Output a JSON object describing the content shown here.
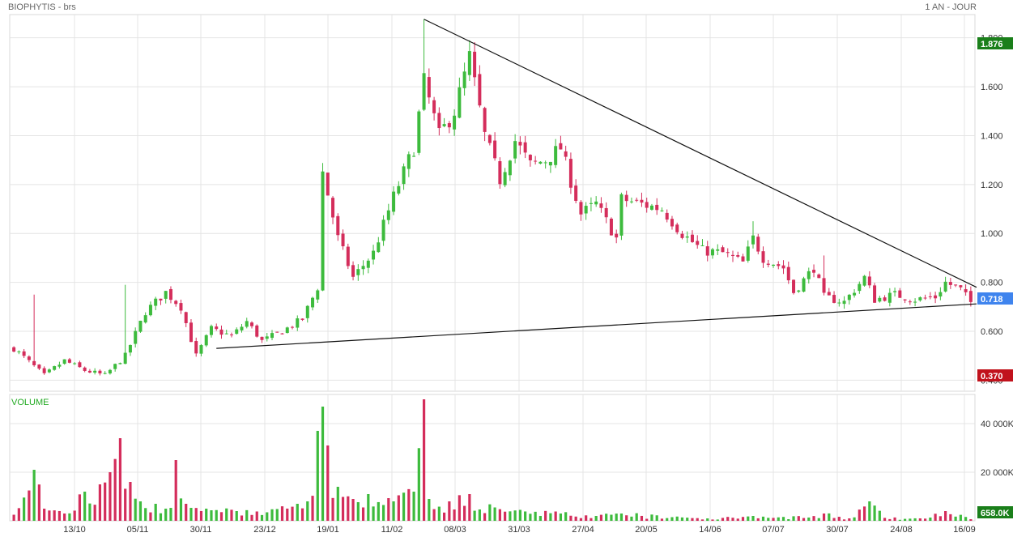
{
  "header": {
    "title": "BIOPHYTIS - brs",
    "period": "1 AN - JOUR"
  },
  "colors": {
    "up": "#3dbb3d",
    "down": "#d42d5b",
    "grid": "#e4e4e4",
    "high_badge": "#1a7f1a",
    "last_badge": "#3f84ee",
    "low_badge": "#c1121c",
    "volume_badge": "#1a7f1a"
  },
  "chart_data": [
    {
      "type": "candlestick",
      "title": "BIOPHYTIS - brs",
      "subtitle": "1 AN - JOUR",
      "x_ticks": [
        "13/10",
        "05/11",
        "30/11",
        "23/12",
        "19/01",
        "11/02",
        "08/03",
        "31/03",
        "27/04",
        "20/05",
        "14/06",
        "07/07",
        "30/07",
        "24/08",
        "16/09"
      ],
      "y_ticks": [
        "0.400",
        "0.600",
        "0.800",
        "1.000",
        "1.200",
        "1.400",
        "1.600",
        "1.800"
      ],
      "ylim": [
        0.355,
        1.895
      ],
      "grid": true,
      "badges": {
        "high": "1.876",
        "last": "0.718",
        "low": "0.370"
      },
      "trendlines": [
        {
          "name": "upper",
          "from": [
            "19/01",
            1.876
          ],
          "to": [
            "16/09",
            0.78
          ]
        },
        {
          "name": "lower",
          "from": [
            "30/11",
            0.53
          ],
          "to": [
            "16/09",
            0.712
          ]
        }
      ],
      "anchors": [
        {
          "i": 0,
          "v": 0.53
        },
        {
          "i": 6,
          "v": 0.42
        },
        {
          "i": 10,
          "v": 0.48
        },
        {
          "i": 14,
          "v": 0.44
        },
        {
          "i": 18,
          "v": 0.42
        },
        {
          "i": 22,
          "v": 0.5
        },
        {
          "i": 26,
          "v": 0.68
        },
        {
          "i": 30,
          "v": 0.76
        },
        {
          "i": 33,
          "v": 0.7
        },
        {
          "i": 36,
          "v": 0.5
        },
        {
          "i": 39,
          "v": 0.61
        },
        {
          "i": 43,
          "v": 0.58
        },
        {
          "i": 46,
          "v": 0.64
        },
        {
          "i": 49,
          "v": 0.56
        },
        {
          "i": 53,
          "v": 0.6
        },
        {
          "i": 57,
          "v": 0.65
        },
        {
          "i": 60,
          "v": 0.78
        },
        {
          "i": 61,
          "v": 1.25
        },
        {
          "i": 64,
          "v": 0.98
        },
        {
          "i": 67,
          "v": 0.82
        },
        {
          "i": 71,
          "v": 0.92
        },
        {
          "i": 75,
          "v": 1.15
        },
        {
          "i": 79,
          "v": 1.35
        },
        {
          "i": 81,
          "v": 1.62
        },
        {
          "i": 84,
          "v": 1.4
        },
        {
          "i": 87,
          "v": 1.5
        },
        {
          "i": 90,
          "v": 1.72
        },
        {
          "i": 93,
          "v": 1.4
        },
        {
          "i": 96,
          "v": 1.22
        },
        {
          "i": 99,
          "v": 1.38
        },
        {
          "i": 102,
          "v": 1.28
        },
        {
          "i": 105,
          "v": 1.3
        },
        {
          "i": 108,
          "v": 1.35
        },
        {
          "i": 112,
          "v": 1.08
        },
        {
          "i": 115,
          "v": 1.12
        },
        {
          "i": 119,
          "v": 0.98
        },
        {
          "i": 120,
          "v": 1.14
        },
        {
          "i": 124,
          "v": 1.12
        },
        {
          "i": 128,
          "v": 1.1
        },
        {
          "i": 132,
          "v": 1.0
        },
        {
          "i": 136,
          "v": 0.93
        },
        {
          "i": 140,
          "v": 0.92
        },
        {
          "i": 144,
          "v": 0.88
        },
        {
          "i": 146,
          "v": 0.98
        },
        {
          "i": 148,
          "v": 0.9
        },
        {
          "i": 152,
          "v": 0.86
        },
        {
          "i": 154,
          "v": 0.76
        },
        {
          "i": 158,
          "v": 0.86
        },
        {
          "i": 160,
          "v": 0.74
        },
        {
          "i": 164,
          "v": 0.72
        },
        {
          "i": 168,
          "v": 0.82
        },
        {
          "i": 170,
          "v": 0.73
        },
        {
          "i": 174,
          "v": 0.75
        },
        {
          "i": 178,
          "v": 0.73
        },
        {
          "i": 182,
          "v": 0.74
        },
        {
          "i": 184,
          "v": 0.8
        },
        {
          "i": 187,
          "v": 0.77
        },
        {
          "i": 189,
          "v": 0.718
        }
      ],
      "spikes": [
        {
          "i": 4,
          "v": 0.75
        },
        {
          "i": 22,
          "v": 0.79
        },
        {
          "i": 61,
          "v": 1.28
        },
        {
          "i": 81,
          "v": 1.876
        },
        {
          "i": 90,
          "v": 1.78
        },
        {
          "i": 146,
          "v": 1.05
        },
        {
          "i": 160,
          "v": 0.91
        }
      ]
    },
    {
      "type": "bar",
      "title": "VOLUME",
      "y_ticks": [
        "20 000K",
        "40 000K"
      ],
      "ylim": [
        0,
        52000
      ],
      "last_label": "658.0K",
      "anchors": [
        {
          "i": 0,
          "v": 2500
        },
        {
          "i": 4,
          "v": 21000
        },
        {
          "i": 6,
          "v": 5000
        },
        {
          "i": 10,
          "v": 3000
        },
        {
          "i": 14,
          "v": 12000
        },
        {
          "i": 17,
          "v": 15000
        },
        {
          "i": 19,
          "v": 20000
        },
        {
          "i": 21,
          "v": 34000
        },
        {
          "i": 23,
          "v": 16000
        },
        {
          "i": 25,
          "v": 8000
        },
        {
          "i": 28,
          "v": 7000
        },
        {
          "i": 30,
          "v": 5000
        },
        {
          "i": 32,
          "v": 25000
        },
        {
          "i": 34,
          "v": 7000
        },
        {
          "i": 38,
          "v": 5000
        },
        {
          "i": 44,
          "v": 4000
        },
        {
          "i": 50,
          "v": 3500
        },
        {
          "i": 56,
          "v": 7000
        },
        {
          "i": 58,
          "v": 8000
        },
        {
          "i": 61,
          "v": 47000
        },
        {
          "i": 62,
          "v": 31000
        },
        {
          "i": 64,
          "v": 14000
        },
        {
          "i": 67,
          "v": 9000
        },
        {
          "i": 70,
          "v": 11000
        },
        {
          "i": 75,
          "v": 8000
        },
        {
          "i": 79,
          "v": 12000
        },
        {
          "i": 81,
          "v": 50000
        },
        {
          "i": 82,
          "v": 9000
        },
        {
          "i": 86,
          "v": 8000
        },
        {
          "i": 90,
          "v": 11000
        },
        {
          "i": 95,
          "v": 5500
        },
        {
          "i": 100,
          "v": 4500
        },
        {
          "i": 108,
          "v": 3000
        },
        {
          "i": 115,
          "v": 2000
        },
        {
          "i": 120,
          "v": 3000
        },
        {
          "i": 130,
          "v": 1500
        },
        {
          "i": 140,
          "v": 1200
        },
        {
          "i": 146,
          "v": 2000
        },
        {
          "i": 150,
          "v": 1200
        },
        {
          "i": 160,
          "v": 3000
        },
        {
          "i": 165,
          "v": 1000
        },
        {
          "i": 169,
          "v": 8000
        },
        {
          "i": 172,
          "v": 1200
        },
        {
          "i": 180,
          "v": 900
        },
        {
          "i": 184,
          "v": 4000
        },
        {
          "i": 189,
          "v": 658
        }
      ]
    }
  ]
}
